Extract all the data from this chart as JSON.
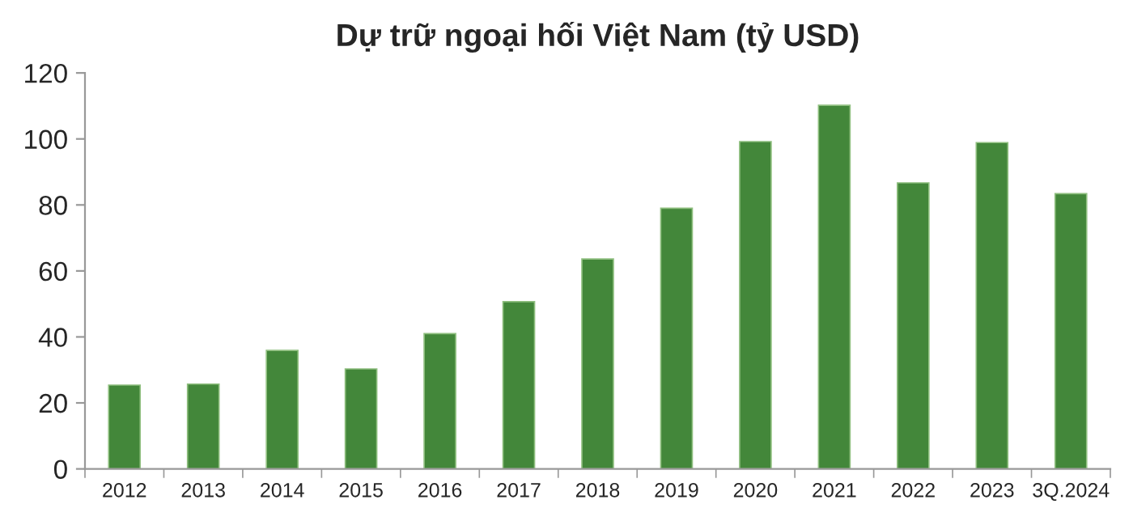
{
  "chart_data": {
    "type": "bar",
    "title": "Dự trữ ngoại hối Việt Nam (tỷ USD)",
    "categories": [
      "2012",
      "2013",
      "2014",
      "2015",
      "2016",
      "2017",
      "2018",
      "2019",
      "2020",
      "2021",
      "2022",
      "2023",
      "3Q.2024"
    ],
    "values": [
      25.4,
      25.7,
      35.9,
      30.3,
      41.0,
      50.7,
      63.6,
      79.0,
      99.2,
      110.2,
      86.7,
      98.9,
      83.4
    ],
    "color": "#43873a",
    "ylim": [
      0,
      120
    ],
    "yticks": [
      0,
      20,
      40,
      60,
      80,
      100,
      120
    ],
    "grid": false,
    "legend": false
  }
}
